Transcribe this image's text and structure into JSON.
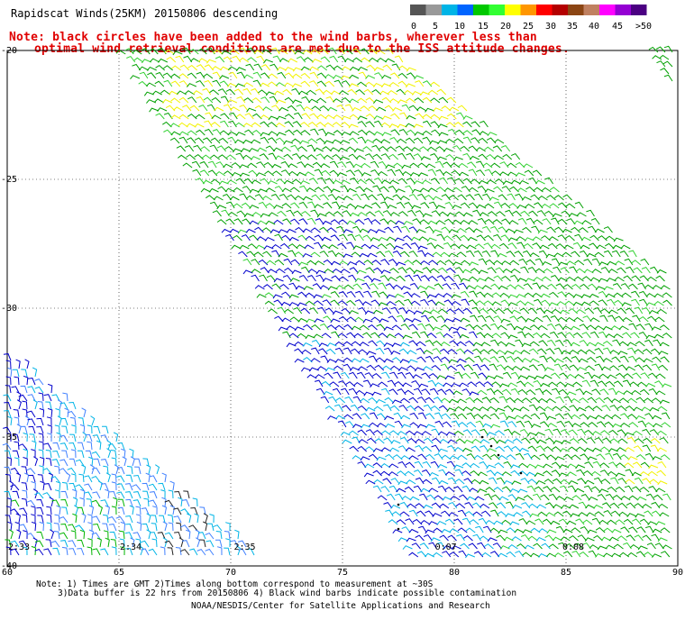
{
  "title": "Rapidscat Winds(25KM) 20150806 descending",
  "note_line1": "Note: black circles have been added to the wind barbs, wherever less than",
  "note_line2": "optimal wind retrieval conditions are met due to the ISS attitude changes.",
  "footer_line1": "Note: 1) Times are GMT 2)Times along bottom correspond to measurement at ~30S",
  "footer_line2": "3)Data buffer is 22 hrs from 20150806 4) Black wind barbs indicate possible contamination",
  "footer_line3": "NOAA/NESDIS/Center for Satellite Applications and Research",
  "colorbar": {
    "labels": [
      "0",
      "5",
      "10",
      "15",
      "20",
      "25",
      "30",
      "35",
      "40",
      "45",
      ">50 knots"
    ],
    "colors": [
      "#555555",
      "#999999",
      "#00b4e6",
      "#0064ff",
      "#00c800",
      "#32ff32",
      "#ffff00",
      "#ff9600",
      "#ff0000",
      "#b40000",
      "#8b4513",
      "#c08060",
      "#ff00ff",
      "#9400d3",
      "#4b0082"
    ]
  },
  "map": {
    "lat_labels": [
      "-20",
      "-25",
      "-30",
      "-35",
      "-40"
    ],
    "lon_labels": [
      "60",
      "65",
      "70",
      "75",
      "80",
      "85",
      "90"
    ],
    "lat_values": [
      -20,
      -25,
      -30,
      -35,
      -40
    ],
    "lon_values": [
      60,
      65,
      70,
      75,
      80,
      85,
      90
    ],
    "time_labels": [
      "2:33",
      "2:34",
      "2:35",
      "0:07",
      "0:08"
    ],
    "time_lons": [
      60.2,
      65.2,
      70.3,
      79.3,
      85.0
    ]
  }
}
